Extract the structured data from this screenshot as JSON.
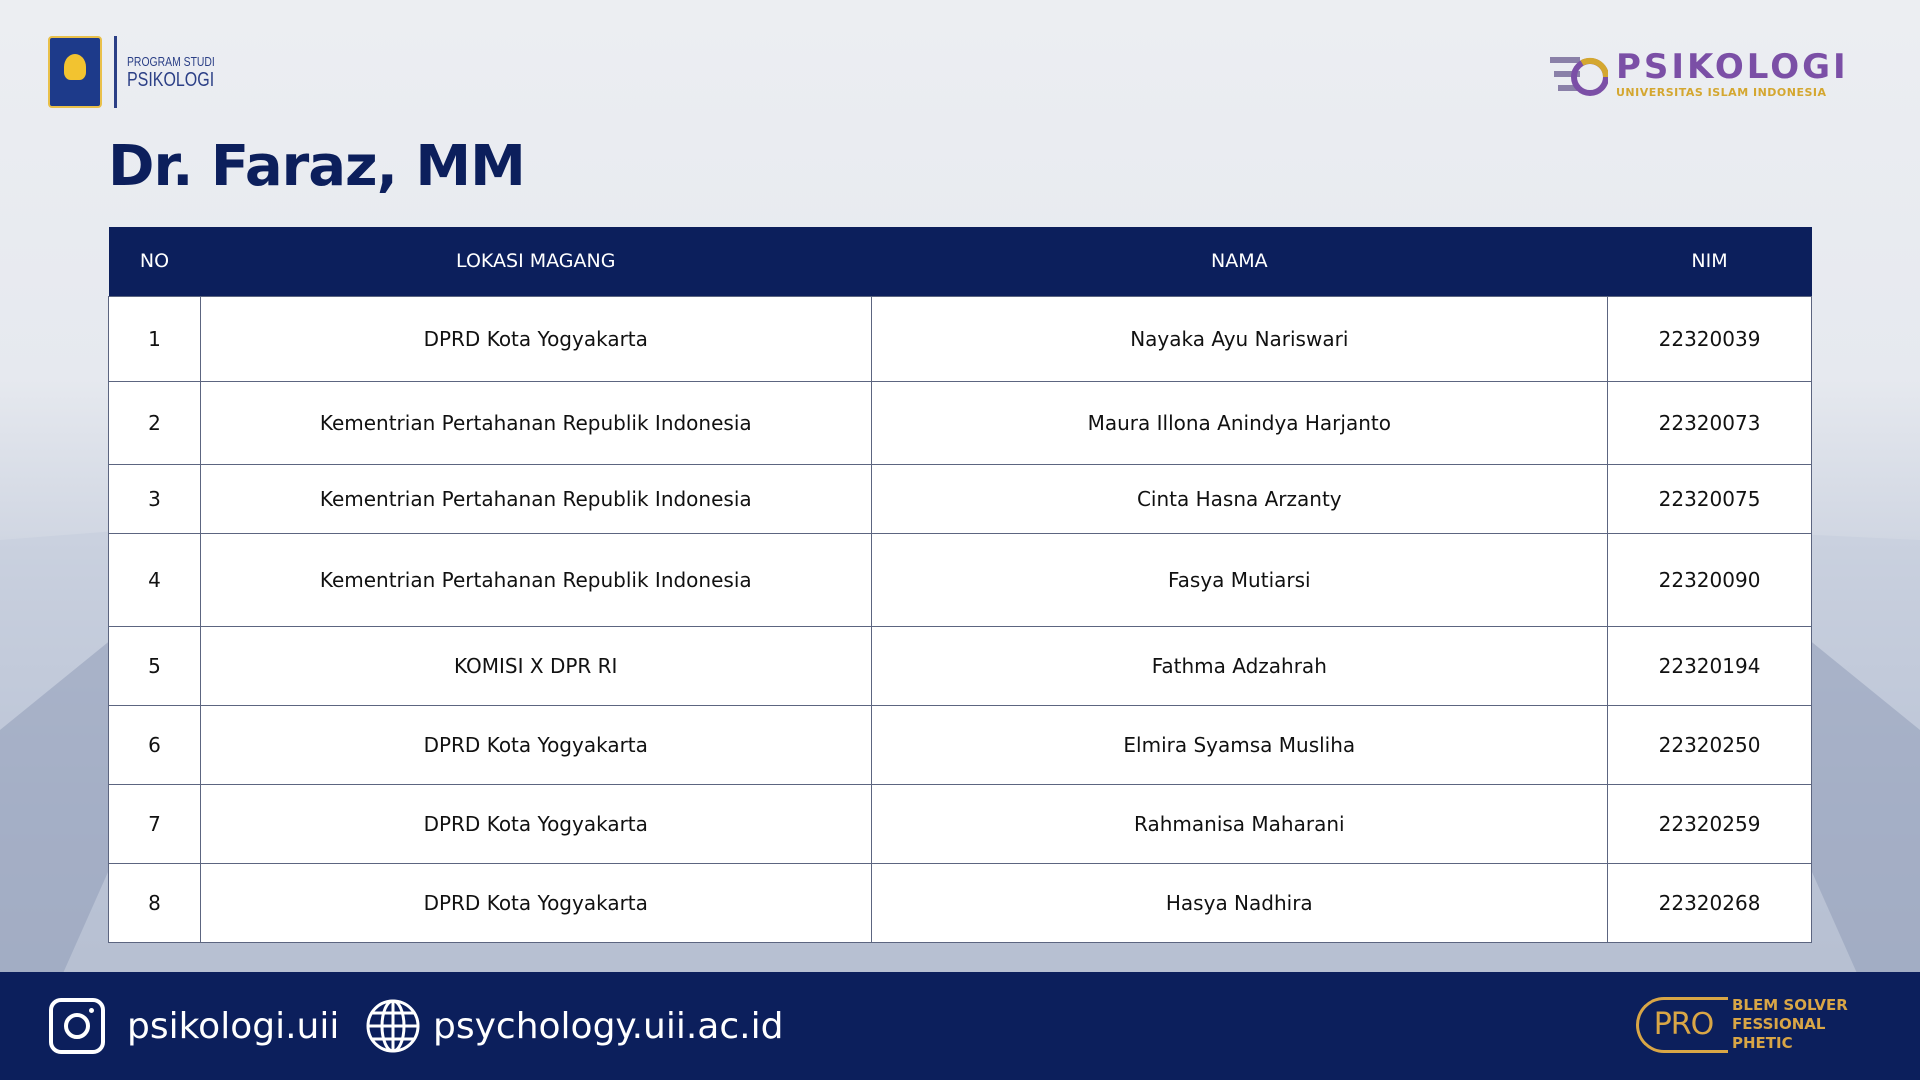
{
  "header": {
    "logo_left": {
      "line1": "PROGRAM STUDI",
      "line2": "PSIKOLOGI"
    },
    "logo_right": {
      "title": "PSIKOLOGI",
      "subtitle": "UNIVERSITAS ISLAM INDONESIA"
    },
    "title": "Dr. Faraz, MM"
  },
  "table": {
    "columns": [
      "NO",
      "LOKASI MAGANG",
      "NAMA",
      "NIM"
    ],
    "rows": [
      {
        "no": "1",
        "lokasi": "DPRD Kota Yogyakarta",
        "nama": "Nayaka Ayu Nariswari",
        "nim": "22320039"
      },
      {
        "no": "2",
        "lokasi": "Kementrian Pertahanan Republik Indonesia",
        "nama": "Maura Illona Anindya Harjanto",
        "nim": "22320073"
      },
      {
        "no": "3",
        "lokasi": "Kementrian Pertahanan Republik Indonesia",
        "nama": "Cinta Hasna Arzanty",
        "nim": "22320075"
      },
      {
        "no": "4",
        "lokasi": "Kementrian Pertahanan Republik Indonesia",
        "nama": "Fasya Mutiarsi",
        "nim": "22320090"
      },
      {
        "no": "5",
        "lokasi": "KOMISI X DPR RI",
        "nama": "Fathma Adzahrah",
        "nim": "22320194"
      },
      {
        "no": "6",
        "lokasi": "DPRD Kota Yogyakarta",
        "nama": "Elmira Syamsa Musliha",
        "nim": "22320250"
      },
      {
        "no": "7",
        "lokasi": "DPRD Kota Yogyakarta",
        "nama": "Rahmanisa Maharani",
        "nim": "22320259"
      },
      {
        "no": "8",
        "lokasi": "DPRD Kota Yogyakarta",
        "nama": "Hasya Nadhira",
        "nim": "22320268"
      }
    ]
  },
  "footer": {
    "instagram": "psikologi.uii",
    "website": "psychology.uii.ac.id",
    "pro_logo": {
      "mark": "PRO",
      "lines": [
        "BLEM SOLVER",
        "FESSIONAL",
        "PHETIC"
      ]
    }
  },
  "colors": {
    "navy": "#0c1f5c",
    "gold": "#d9a646",
    "purple": "#7b4fa6"
  }
}
